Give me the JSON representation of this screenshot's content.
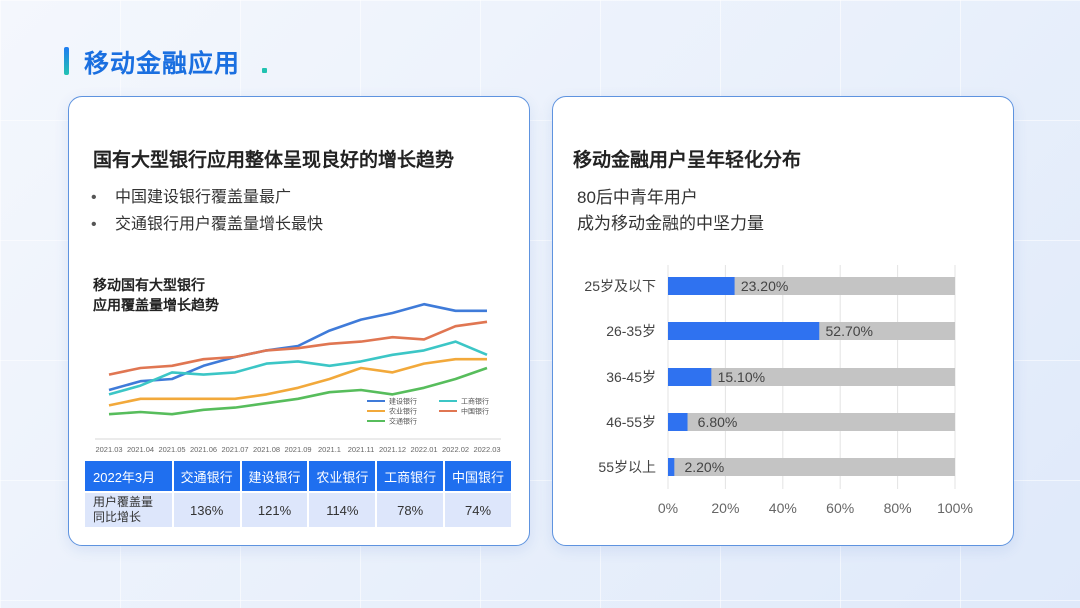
{
  "page": {
    "title": "移动金融应用"
  },
  "left_card": {
    "heading": "国有大型银行应用整体呈现良好的增长趋势",
    "bullets": [
      "中国建设银行覆盖量最广",
      "交通银行用户覆盖量增长最快"
    ],
    "bullet_symbol": "•",
    "line_chart_title_1": "移动国有大型银行",
    "line_chart_title_2": "应用覆盖量增长趋势",
    "table": {
      "header_first": "2022年3月",
      "banks": [
        "交通银行",
        "建设银行",
        "农业银行",
        "工商银行",
        "中国银行"
      ],
      "row_label_1": "用户覆盖量",
      "row_label_2": "同比增长",
      "values": [
        "136%",
        "121%",
        "114%",
        "78%",
        "74%"
      ]
    }
  },
  "right_card": {
    "heading": "移动金融用户呈年轻化分布",
    "line1": "80后中青年用户",
    "line2": "成为移动金融的中坚力量"
  },
  "chart_data": [
    {
      "type": "line",
      "title": "移动国有大型银行 应用覆盖量增长趋势",
      "x": [
        "2021.03",
        "2021.04",
        "2021.05",
        "2021.06",
        "2021.07",
        "2021.08",
        "2021.09",
        "2021.1",
        "2021.11",
        "2021.12",
        "2022.01",
        "2022.02",
        "2022.03"
      ],
      "series": [
        {
          "name": "建设银行",
          "color": "#3f7bd9",
          "values": [
            30,
            38,
            40,
            52,
            60,
            66,
            70,
            84,
            94,
            100,
            108,
            102,
            102
          ]
        },
        {
          "name": "工商银行",
          "color": "#3cc6c6",
          "values": [
            26,
            34,
            46,
            44,
            46,
            54,
            56,
            52,
            56,
            62,
            66,
            74,
            62
          ]
        },
        {
          "name": "农业银行",
          "color": "#f2a93b",
          "values": [
            16,
            22,
            22,
            22,
            22,
            26,
            32,
            40,
            50,
            46,
            54,
            58,
            58
          ]
        },
        {
          "name": "中国银行",
          "color": "#e07652",
          "values": [
            44,
            50,
            52,
            58,
            60,
            66,
            68,
            72,
            74,
            78,
            76,
            88,
            92
          ]
        },
        {
          "name": "交通银行",
          "color": "#57bd5c",
          "values": [
            8,
            10,
            8,
            12,
            14,
            18,
            22,
            28,
            30,
            26,
            32,
            40,
            50
          ]
        }
      ],
      "ylim": [
        0,
        120
      ],
      "grid": false,
      "legend": "bottom-right"
    },
    {
      "type": "bar",
      "orientation": "horizontal",
      "stacked_background": true,
      "categories": [
        "25岁及以下",
        "26-35岁",
        "36-45岁",
        "46-55岁",
        "55岁以上"
      ],
      "values": [
        23.2,
        52.7,
        15.1,
        6.8,
        2.2
      ],
      "value_labels": [
        "23.20%",
        "52.70%",
        "15.10%",
        "6.80%",
        "2.20%"
      ],
      "xlim": [
        0,
        100
      ],
      "xticks": [
        "0%",
        "20%",
        "40%",
        "60%",
        "80%",
        "100%"
      ],
      "bar_color": "#2f72f0",
      "track_color": "#c4c4c4",
      "grid": true
    }
  ]
}
